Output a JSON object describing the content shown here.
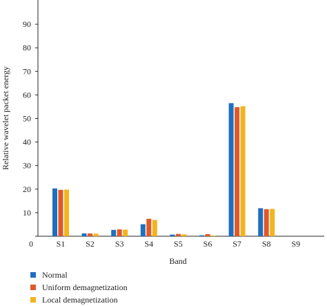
{
  "chart_data": {
    "type": "bar",
    "categories": [
      "S1",
      "S2",
      "S3",
      "S4",
      "S5",
      "S6",
      "S7",
      "S8",
      "S9"
    ],
    "series": [
      {
        "name": "Normal",
        "color": "#1f6fbf",
        "values": [
          20.3,
          1.2,
          2.7,
          5.1,
          0.7,
          0.4,
          56.5,
          11.9,
          0.0
        ]
      },
      {
        "name": "Uniform demagnetization",
        "color": "#e0582a",
        "values": [
          19.7,
          1.2,
          2.9,
          7.4,
          1.0,
          0.9,
          54.8,
          11.5,
          0.0
        ]
      },
      {
        "name": "Local demagnetization",
        "color": "#f2b41f",
        "values": [
          19.8,
          1.1,
          2.8,
          6.9,
          0.8,
          0.3,
          55.2,
          11.6,
          0.0
        ]
      }
    ],
    "xlabel": "Band",
    "ylabel": "Relative wavelet packet energy",
    "ylim": [
      0,
      100
    ],
    "yticks": [
      0,
      10,
      20,
      30,
      40,
      50,
      60,
      70,
      80,
      90
    ],
    "x_origin_label": "0",
    "legend_position": "bottom-left",
    "grid": false
  }
}
